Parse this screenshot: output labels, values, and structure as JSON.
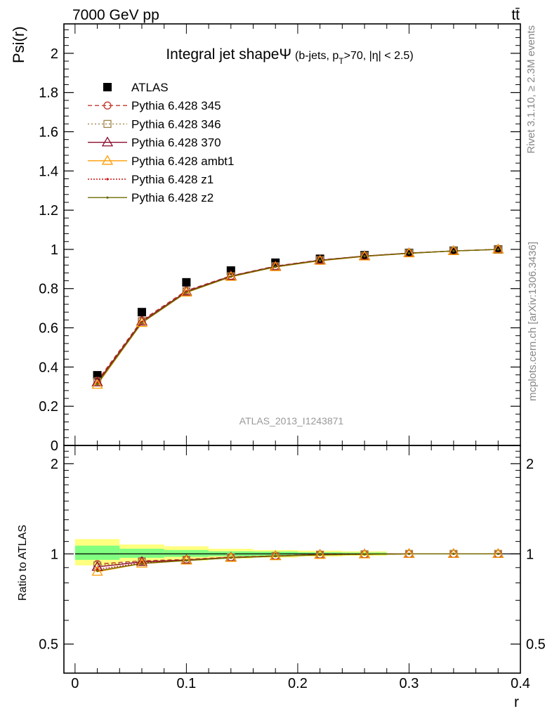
{
  "header": {
    "left": "7000 GeV pp",
    "right": "tt̄"
  },
  "side_labels": {
    "rivet": "Rivet 3.1.10, ≥ 2.3M events",
    "mcplots": "mcplots.cern.ch [arXiv:1306.3436]"
  },
  "watermark": "ATLAS_2013_I1243871",
  "colors": {
    "ATLAS": "#000000",
    "p345": "#c0392b",
    "p346": "#a0864a",
    "p370": "#8b0a2a",
    "ambt1": "#ff9c00",
    "z1": "#cc1010",
    "z2": "#6b6b00",
    "band_inner": "#80ff80",
    "band_outer": "#ffff80"
  },
  "chart_data": [
    {
      "type": "line",
      "panel": "main",
      "title_main": "Integral jet shapeΨ",
      "title_sub_parts": [
        "(b-jets, p",
        "T",
        ">70, |η| < 2.5)"
      ],
      "ylabel": "Psi(r)",
      "xlabel": "",
      "xlim": [
        -0.01,
        0.4
      ],
      "ylim": [
        0,
        2.15
      ],
      "yticks": [
        {
          "value": 0,
          "label": "0"
        },
        {
          "value": 0.2,
          "label": "0.2"
        },
        {
          "value": 0.4,
          "label": "0.4"
        },
        {
          "value": 0.6,
          "label": "0.6"
        },
        {
          "value": 0.8,
          "label": "0.8"
        },
        {
          "value": 1.0,
          "label": "1"
        },
        {
          "value": 1.2,
          "label": "1.2"
        },
        {
          "value": 1.4,
          "label": "1.4"
        },
        {
          "value": 1.6,
          "label": "1.6"
        },
        {
          "value": 1.8,
          "label": "1.8"
        },
        {
          "value": 2.0,
          "label": "2"
        }
      ],
      "x": [
        0.02,
        0.06,
        0.1,
        0.14,
        0.18,
        0.22,
        0.26,
        0.3,
        0.34,
        0.38
      ],
      "data": {
        "name": "ATLAS",
        "values": [
          0.358,
          0.68,
          0.832,
          0.892,
          0.932,
          0.952,
          0.97,
          0.982,
          0.993,
          1.0
        ]
      },
      "series": [
        {
          "name": "Pythia 6.428 345",
          "key": "p345",
          "marker": "circle-open",
          "dash": "6,4",
          "values": [
            0.33,
            0.638,
            0.79,
            0.865,
            0.915,
            0.946,
            0.966,
            0.981,
            0.992,
            1.0
          ]
        },
        {
          "name": "Pythia 6.428 346",
          "key": "p346",
          "marker": "square-open",
          "dash": "2,3",
          "values": [
            0.326,
            0.634,
            0.787,
            0.863,
            0.914,
            0.945,
            0.966,
            0.981,
            0.992,
            1.0
          ]
        },
        {
          "name": "Pythia 6.428 370",
          "key": "p370",
          "marker": "triangle-open",
          "dash": "",
          "values": [
            0.322,
            0.632,
            0.785,
            0.864,
            0.913,
            0.945,
            0.966,
            0.981,
            0.992,
            1.0
          ]
        },
        {
          "name": "Pythia 6.428 ambt1",
          "key": "ambt1",
          "marker": "triangle-open",
          "dash": "",
          "values": [
            0.31,
            0.625,
            0.78,
            0.86,
            0.91,
            0.942,
            0.964,
            0.98,
            0.992,
            1.0
          ]
        },
        {
          "name": "Pythia 6.428 z1",
          "key": "z1",
          "marker": "dot",
          "dash": "2,2",
          "values": [
            0.318,
            0.628,
            0.782,
            0.861,
            0.911,
            0.943,
            0.965,
            0.98,
            0.992,
            1.0
          ]
        },
        {
          "name": "Pythia 6.428 z2",
          "key": "z2",
          "marker": "dot",
          "dash": "",
          "values": [
            0.314,
            0.626,
            0.781,
            0.861,
            0.911,
            0.943,
            0.965,
            0.98,
            0.992,
            1.0
          ]
        }
      ],
      "legend": {
        "position": "top-left",
        "data_label": "ATLAS"
      }
    },
    {
      "type": "line",
      "panel": "ratio",
      "ylabel": "Ratio to ATLAS",
      "xlabel": "r",
      "scale": "log",
      "xlim": [
        -0.01,
        0.4
      ],
      "ylim": [
        0.4,
        2.3
      ],
      "yticks": [
        {
          "value": 0.5,
          "label": "0.5"
        },
        {
          "value": 1.0,
          "label": "1"
        },
        {
          "value": 2.0,
          "label": "2"
        }
      ],
      "xticks": [
        {
          "value": 0,
          "label": "0"
        },
        {
          "value": 0.1,
          "label": "0.1"
        },
        {
          "value": 0.2,
          "label": "0.2"
        },
        {
          "value": 0.3,
          "label": "0.3"
        },
        {
          "value": 0.4,
          "label": "0.4"
        }
      ],
      "x": [
        0.02,
        0.06,
        0.1,
        0.14,
        0.18,
        0.22,
        0.26,
        0.3,
        0.34,
        0.38
      ],
      "bands": {
        "bin_edges": [
          0.0,
          0.04,
          0.08,
          0.12,
          0.16,
          0.2,
          0.24,
          0.28
        ],
        "outer": [
          [
            0.915,
            1.12
          ],
          [
            0.94,
            1.075
          ],
          [
            0.95,
            1.06
          ],
          [
            0.965,
            1.04
          ],
          [
            0.972,
            1.03
          ],
          [
            0.98,
            1.025
          ],
          [
            0.985,
            1.02
          ]
        ],
        "inner": [
          [
            0.955,
            1.065
          ],
          [
            0.97,
            1.04
          ],
          [
            0.977,
            1.03
          ],
          [
            0.982,
            1.02
          ],
          [
            0.986,
            1.018
          ],
          [
            0.99,
            1.012
          ],
          [
            0.992,
            1.01
          ]
        ]
      },
      "series": [
        {
          "name": "Pythia 6.428 345",
          "key": "p345",
          "values": [
            0.925,
            0.948,
            0.958,
            0.975,
            0.985,
            0.995,
            0.997,
            1.0,
            1.0,
            1.0
          ]
        },
        {
          "name": "Pythia 6.428 346",
          "key": "p346",
          "values": [
            0.915,
            0.944,
            0.956,
            0.974,
            0.984,
            0.994,
            0.997,
            1.0,
            1.0,
            1.0
          ]
        },
        {
          "name": "Pythia 6.428 370",
          "key": "p370",
          "values": [
            0.905,
            0.94,
            0.954,
            0.973,
            0.984,
            0.994,
            0.997,
            1.0,
            1.0,
            1.0
          ]
        },
        {
          "name": "Pythia 6.428 ambt1",
          "key": "ambt1",
          "values": [
            0.872,
            0.928,
            0.95,
            0.97,
            0.982,
            0.992,
            0.996,
            1.0,
            1.0,
            1.0
          ]
        },
        {
          "name": "Pythia 6.428 z1",
          "key": "z1",
          "values": [
            0.888,
            0.932,
            0.951,
            0.971,
            0.983,
            0.993,
            0.996,
            1.0,
            1.0,
            1.0
          ]
        },
        {
          "name": "Pythia 6.428 z2",
          "key": "z2",
          "values": [
            0.877,
            0.929,
            0.95,
            0.97,
            0.982,
            0.992,
            0.996,
            1.0,
            1.0,
            1.0
          ]
        }
      ]
    }
  ]
}
